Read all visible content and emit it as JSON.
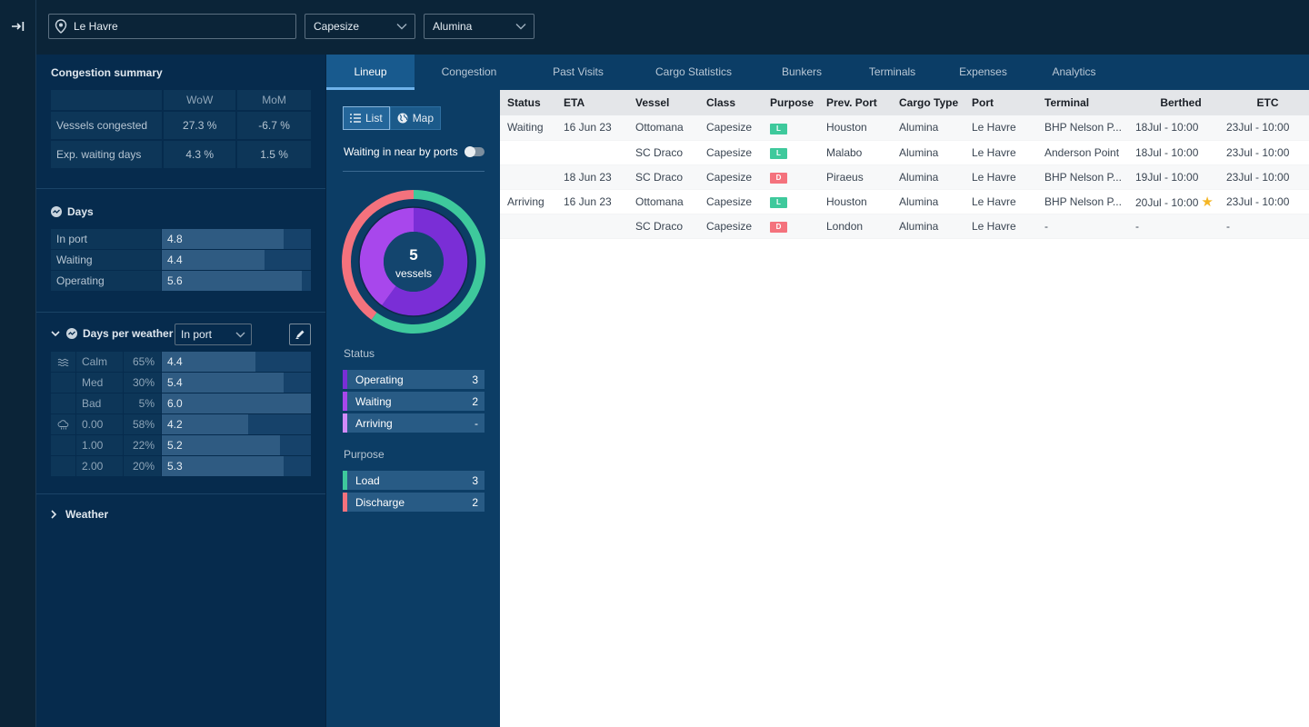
{
  "top": {
    "location": "Le Havre",
    "vessel_class": "Capesize",
    "cargo": "Alumina"
  },
  "summary": {
    "title": "Congestion summary",
    "col_wow": "WoW",
    "col_mom": "MoM",
    "rows": [
      {
        "label": "Vessels congested",
        "wow": "27.3 %",
        "mom": "-6.7 %"
      },
      {
        "label": "Exp. waiting days",
        "wow": "4.3 %",
        "mom": "1.5 %"
      }
    ]
  },
  "days": {
    "title": "Days",
    "rows": [
      {
        "label": "In port",
        "value": "4.8",
        "fill": 0.82
      },
      {
        "label": "Waiting",
        "value": "4.4",
        "fill": 0.69
      },
      {
        "label": "Operating",
        "value": "5.6",
        "fill": 0.94
      }
    ]
  },
  "days_per_weather": {
    "title": "Days per weather",
    "select": "In port",
    "rows": [
      {
        "name": "Calm",
        "pct": "65%",
        "value": "4.4",
        "fill": 0.63
      },
      {
        "name": "Med",
        "pct": "30%",
        "value": "5.4",
        "fill": 0.82
      },
      {
        "name": "Bad",
        "pct": "5%",
        "value": "6.0",
        "fill": 1.0
      },
      {
        "name": "0.00",
        "pct": "58%",
        "value": "4.2",
        "fill": 0.58
      },
      {
        "name": "1.00",
        "pct": "22%",
        "value": "5.2",
        "fill": 0.79
      },
      {
        "name": "2.00",
        "pct": "20%",
        "value": "5.3",
        "fill": 0.82
      }
    ]
  },
  "weather": {
    "title": "Weather"
  },
  "tabs": [
    "Lineup",
    "Congestion",
    "Past Visits",
    "Cargo Statistics",
    "Bunkers",
    "Terminals",
    "Expenses",
    "Analytics"
  ],
  "view": {
    "list_label": "List",
    "map_label": "Map",
    "waiting_toggle": "Waiting in near by ports",
    "donut_count": "5",
    "donut_unit": "vessels",
    "status_title": "Status",
    "status": [
      {
        "name": "Operating",
        "count": "3",
        "color": "#7a2ed6"
      },
      {
        "name": "Waiting",
        "count": "2",
        "color": "#a847ec"
      },
      {
        "name": "Arriving",
        "count": "-",
        "color": "#d18af8"
      }
    ],
    "purpose_title": "Purpose",
    "purpose": [
      {
        "name": "Load",
        "count": "3",
        "color": "#3ec99c"
      },
      {
        "name": "Discharge",
        "count": "2",
        "color": "#f4727d"
      }
    ]
  },
  "lineup": {
    "headers": [
      "Status",
      "ETA",
      "Vessel",
      "Class",
      "Purpose",
      "Prev. Port",
      "Cargo Type",
      "Port",
      "Terminal",
      "Berthed",
      "ETC"
    ],
    "rows": [
      {
        "status": "Waiting",
        "eta": "16 Jun 23",
        "vessel": "Ottomana",
        "class": "Capesize",
        "purpose": "L",
        "prev": "Houston",
        "cargo": "Alumina",
        "port": "Le Havre",
        "terminal": "BHP Nelson P...",
        "berthed": "18Jul - 10:00",
        "etc": "23Jul - 10:00"
      },
      {
        "status": "",
        "eta": "",
        "vessel": "SC Draco",
        "class": "Capesize",
        "purpose": "L",
        "prev": "Malabo",
        "cargo": "Alumina",
        "port": "Le Havre",
        "terminal": "Anderson Point",
        "berthed": "18Jul - 10:00",
        "etc": "23Jul - 10:00"
      },
      {
        "status": "",
        "eta": "18 Jun 23",
        "vessel": "SC Draco",
        "class": "Capesize",
        "purpose": "D",
        "prev": "Piraeus",
        "cargo": "Alumina",
        "port": "Le Havre",
        "terminal": "BHP Nelson P...",
        "berthed": "19Jul - 10:00",
        "etc": "23Jul - 10:00"
      },
      {
        "status": "Arriving",
        "eta": "16 Jun 23",
        "vessel": "Ottomana",
        "class": "Capesize",
        "purpose": "L",
        "prev": "Houston",
        "cargo": "Alumina",
        "port": "Le Havre",
        "terminal": "BHP Nelson P...",
        "berthed": "20Jul - 10:00",
        "etc": "23Jul - 10:00",
        "star": true
      },
      {
        "status": "",
        "eta": "",
        "vessel": "SC Draco",
        "class": "Capesize",
        "purpose": "D",
        "prev": "London",
        "cargo": "Alumina",
        "port": "Le Havre",
        "terminal": "-",
        "berthed": "-",
        "etc": "-"
      }
    ]
  }
}
